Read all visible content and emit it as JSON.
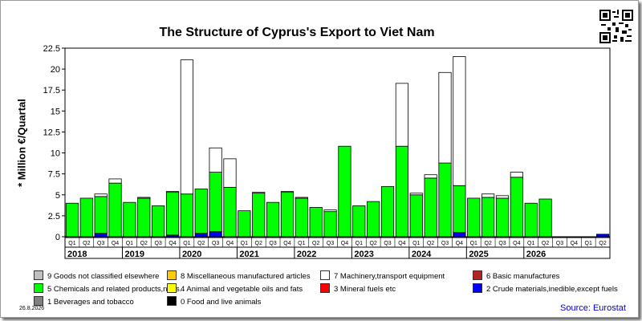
{
  "chart_data": {
    "type": "bar",
    "stacked": true,
    "title": "The Structure of Cyprus's Export to Viet Nam",
    "ylabel": "* Million €/Quartal",
    "ylim": [
      0,
      22.5
    ],
    "yticks": [
      "0",
      "2.5",
      "5",
      "7.5",
      "10",
      "12.5",
      "15",
      "17.5",
      "20",
      "22.5"
    ],
    "grid": false,
    "legend_position": "bottom",
    "quarters": [
      "Q1",
      "Q2",
      "Q3",
      "Q4",
      "Q1",
      "Q2",
      "Q3",
      "Q4",
      "Q1",
      "Q2",
      "Q3",
      "Q4",
      "Q1",
      "Q2",
      "Q3",
      "Q4",
      "Q1",
      "Q2",
      "Q3",
      "Q4",
      "Q1",
      "Q2",
      "Q3",
      "Q4",
      "Q1",
      "Q2",
      "Q3",
      "Q4",
      "Q1",
      "Q2",
      "Q3",
      "Q4",
      "Q1",
      "Q2",
      "Q3",
      "Q4",
      "Q1",
      "Q2"
    ],
    "years": [
      "2018",
      "2019",
      "2020",
      "2021",
      "2022",
      "2023",
      "2024",
      "2025",
      "2026"
    ],
    "series": [
      {
        "name": "0 Food and live animals",
        "color": "#000000",
        "values": [
          0,
          0,
          0,
          0,
          0,
          0,
          0,
          0,
          0,
          0,
          0,
          0,
          0,
          0,
          0,
          0,
          0,
          0,
          0,
          0,
          0,
          0,
          0,
          0,
          0,
          0,
          0,
          0,
          0,
          0,
          0,
          0,
          0,
          0,
          0,
          0,
          0,
          0
        ]
      },
      {
        "name": "2 Crude materials,inedible,except fuels",
        "color": "#0000ff",
        "values": [
          0,
          0,
          0.4,
          0,
          0,
          0,
          0,
          0.2,
          0,
          0.4,
          0.6,
          0,
          0,
          0,
          0,
          0,
          0,
          0,
          0,
          0,
          0,
          0,
          0,
          0,
          0,
          0,
          0,
          0.5,
          0,
          0,
          0,
          0,
          0,
          0,
          0,
          0,
          0,
          0.3
        ]
      },
      {
        "name": "5 Chemicals and related products,n.e.s.",
        "color": "#00ff00",
        "values": [
          4.0,
          4.6,
          4.4,
          6.4,
          4.1,
          4.6,
          3.7,
          5.1,
          5.1,
          5.3,
          7.1,
          5.9,
          3.1,
          5.2,
          4.1,
          5.3,
          4.6,
          3.5,
          3.0,
          10.8,
          3.7,
          4.2,
          6.0,
          10.8,
          5.0,
          7.0,
          8.8,
          5.6,
          4.6,
          4.7,
          4.6,
          7.1,
          4.0,
          4.5,
          0,
          0,
          0,
          0
        ]
      },
      {
        "name": "7 Machinery,transport equipment",
        "color": "#ffffff",
        "values": [
          0,
          0,
          0.3,
          0.5,
          0,
          0.1,
          0,
          0.1,
          16.0,
          0,
          2.9,
          3.4,
          0,
          0.1,
          0,
          0.1,
          0.1,
          0,
          0.2,
          0,
          0,
          0,
          0,
          7.5,
          0.2,
          0.4,
          10.8,
          15.4,
          0,
          0.4,
          0.3,
          0.6,
          0,
          0,
          0,
          0,
          0,
          0
        ]
      },
      {
        "name": "9 Goods not classified elsewhere",
        "color": "#c0c0c0",
        "values": [
          0,
          0,
          0,
          0,
          0,
          0,
          0,
          0,
          0,
          0,
          0,
          0,
          0,
          0,
          0,
          0,
          0,
          0,
          0,
          0,
          0,
          0,
          0,
          0,
          0,
          0,
          0,
          0,
          0,
          0,
          0,
          0,
          0,
          0,
          0,
          0,
          0,
          0
        ]
      }
    ],
    "legend": [
      {
        "label": "9 Goods not classified elsewhere",
        "color": "#c0c0c0"
      },
      {
        "label": "8 Miscellaneous manufactured articles",
        "color": "#ffcc00"
      },
      {
        "label": "7 Machinery,transport equipment",
        "color": "#ffffff"
      },
      {
        "label": "6 Basic manufactures",
        "color": "#b22222"
      },
      {
        "label": "5 Chemicals and related products,n.e.s.",
        "color": "#00ff00"
      },
      {
        "label": "4 Animal and vegetable oils and fats",
        "color": "#ffff00"
      },
      {
        "label": "3 Mineral fuels etc",
        "color": "#ff0000"
      },
      {
        "label": "2 Crude materials,inedible,except fuels",
        "color": "#0000ff"
      },
      {
        "label": "1 Beverages and tobacco",
        "color": "#808080"
      },
      {
        "label": "0 Food and live animals",
        "color": "#000000"
      }
    ]
  },
  "footer": {
    "date": "26.8.2026",
    "source": "Source: Eurostat"
  }
}
